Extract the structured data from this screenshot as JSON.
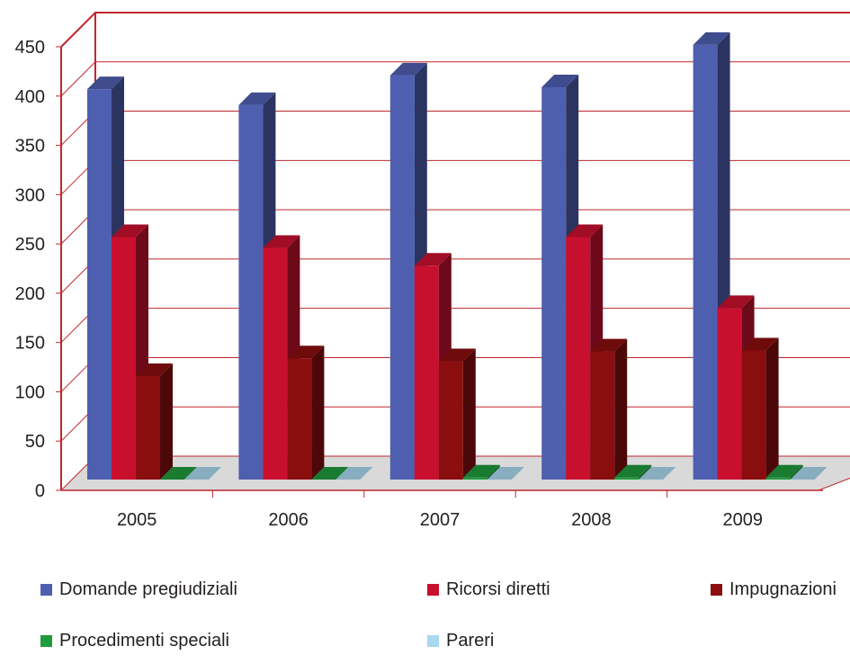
{
  "chart_data": {
    "type": "bar",
    "title": "",
    "xlabel": "",
    "ylabel": "",
    "categories": [
      "2005",
      "2006",
      "2007",
      "2008",
      "2009"
    ],
    "ylim": [
      0,
      450
    ],
    "yticks": [
      "0",
      "50",
      "100",
      "150",
      "200",
      "250",
      "300",
      "350",
      "400",
      "450"
    ],
    "grid": true,
    "style": "3d-clustered-column",
    "legend_position": "bottom",
    "series": [
      {
        "name": "Domande pregiudiziali",
        "color": "#4f5fb0",
        "values": [
          396,
          380,
          410,
          398,
          441
        ]
      },
      {
        "name": "Ricorsi diretti",
        "color": "#c8102e",
        "values": [
          246,
          235,
          217,
          246,
          174
        ]
      },
      {
        "name": "Impugnazioni",
        "color": "#8b0e0e",
        "values": [
          105,
          123,
          120,
          130,
          131
        ]
      },
      {
        "name": "Procedimenti speciali",
        "color": "#1f9a3c",
        "values": [
          0,
          0,
          2,
          2,
          2
        ]
      },
      {
        "name": "Pareri",
        "color": "#a9d8ef",
        "values": [
          0,
          0,
          0,
          0,
          0
        ]
      }
    ]
  }
}
